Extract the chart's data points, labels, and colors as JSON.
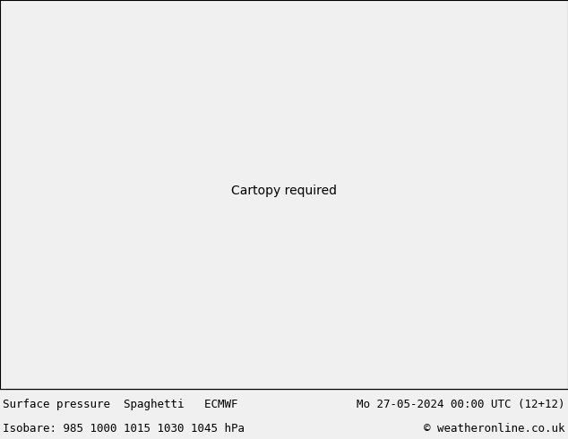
{
  "title_left": "Surface pressure  Spaghetti   ECMWF",
  "title_right": "Mo 27-05-2024 00:00 UTC (12+12)",
  "subtitle_left": "Isobare: 985 1000 1015 1030 1045 hPa",
  "subtitle_right": "© weatheronline.co.uk",
  "bg_color": "#f0f0f0",
  "ocean_color": "#f0f0f0",
  "land_color": "#c8f0a0",
  "lake_color": "#f0f0f0",
  "border_color": "#808080",
  "coastline_color": "#808080",
  "state_color": "#a0a0a0",
  "bottom_bar_color": "#f0f0f0",
  "text_color": "#000000",
  "fig_width": 6.34,
  "fig_height": 4.9,
  "title_fontsize": 9.0,
  "map_lon_min": -180,
  "map_lon_max": 5,
  "map_lat_min": 10,
  "map_lat_max": 85,
  "ensemble_colors": [
    "#ff0000",
    "#00cc00",
    "#0000ff",
    "#ff8800",
    "#cc00cc",
    "#00cccc",
    "#ff00cc",
    "#888800",
    "#006600",
    "#cc0000",
    "#0000cc",
    "#ff6600",
    "#00ff00",
    "#ff0088",
    "#00ffff",
    "#ffff00",
    "#880088",
    "#008888",
    "#ff4444",
    "#4444ff",
    "#ff88ff",
    "#88ff44",
    "#8844ff",
    "#44ff88",
    "#ff4488",
    "#888888",
    "#ffaa00",
    "#00aaff",
    "#aa00ff",
    "#ff00aa",
    "#00ffaa",
    "#aaff00",
    "#ff5500",
    "#5500ff",
    "#00ff55",
    "#aa5500",
    "#5500aa",
    "#00aa55",
    "#550055",
    "#005555"
  ],
  "n_ensemble": 51
}
